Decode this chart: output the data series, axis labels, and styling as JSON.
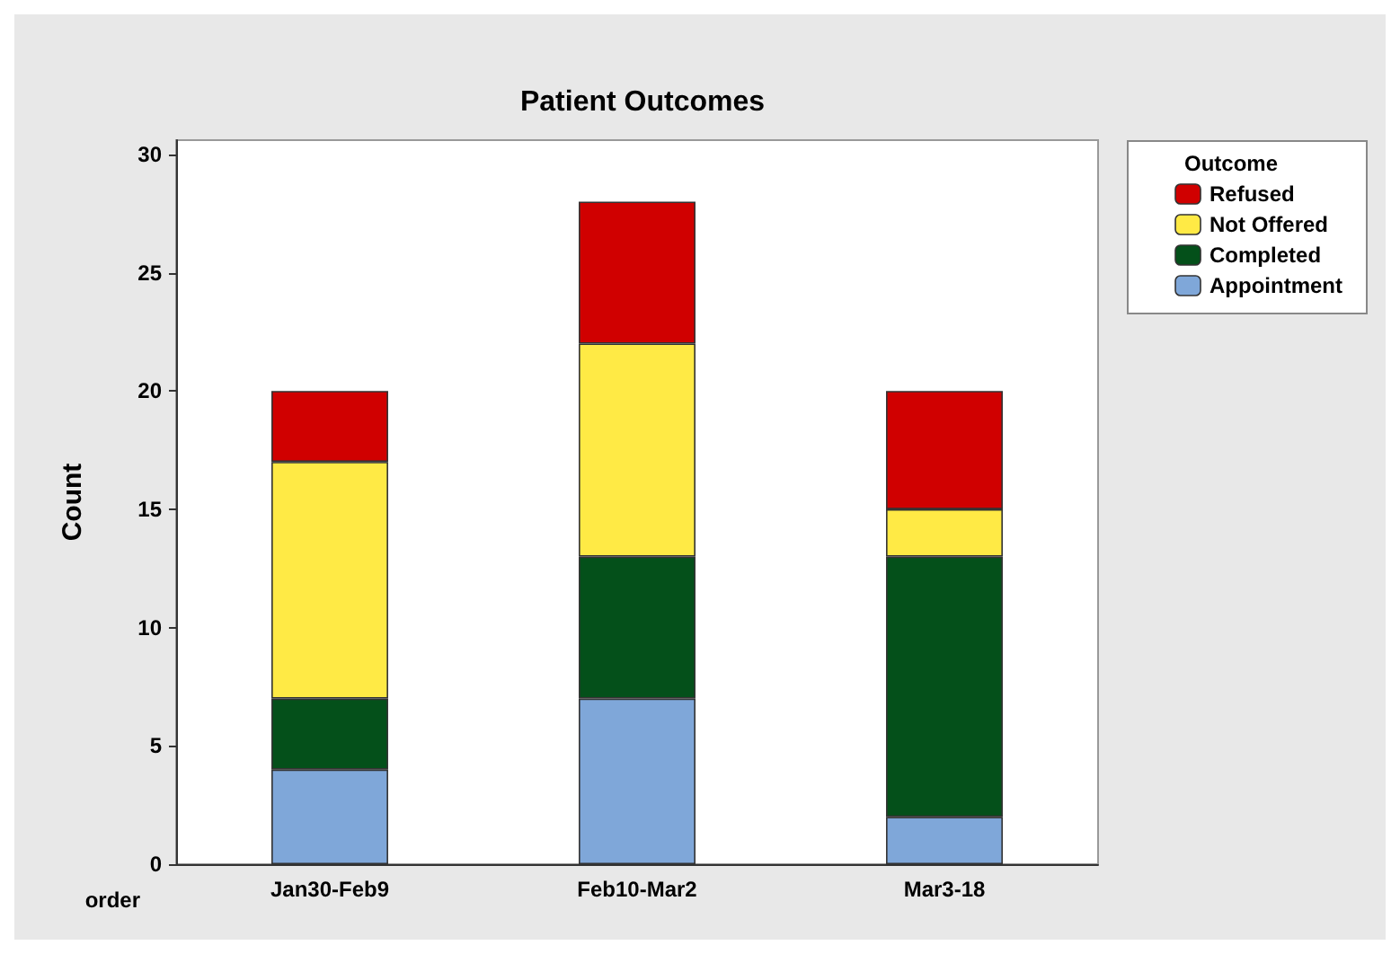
{
  "chart_data": {
    "type": "bar",
    "title": "Patient Outcomes",
    "xlabel": "order",
    "ylabel": "Count",
    "legend_title": "Outcome",
    "categories": [
      "Jan30-Feb9",
      "Feb10-Mar2",
      "Mar3-18"
    ],
    "stacked": true,
    "ylim": [
      0,
      30.6
    ],
    "yticks": [
      0,
      5,
      10,
      15,
      20,
      25,
      30
    ],
    "grid": false,
    "legend": "top right",
    "series": [
      {
        "name": "Appointment",
        "color": "#7fa7d9",
        "values": [
          4,
          7,
          2
        ]
      },
      {
        "name": "Completed",
        "color": "#04501a",
        "values": [
          3,
          6,
          11
        ]
      },
      {
        "name": "Not Offered",
        "color": "#ffea45",
        "values": [
          10,
          9,
          2
        ]
      },
      {
        "name": "Refused",
        "color": "#d00000",
        "values": [
          3,
          6,
          5
        ]
      }
    ]
  }
}
